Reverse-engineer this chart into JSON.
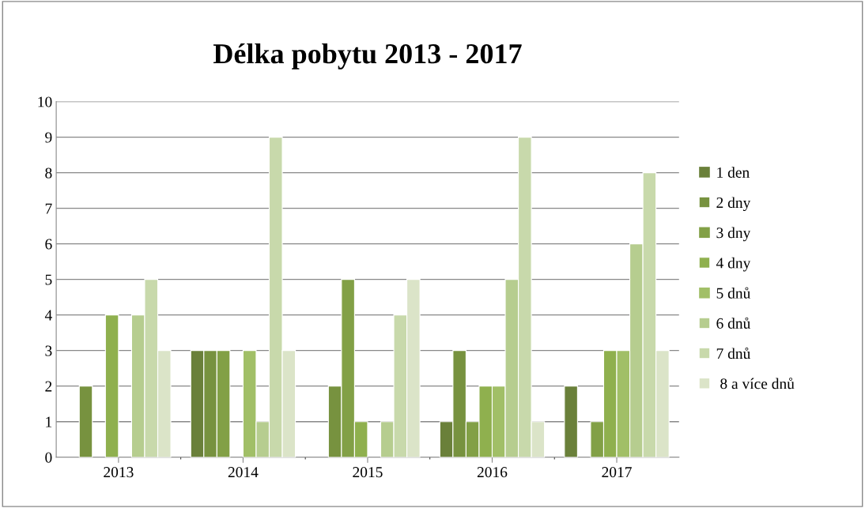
{
  "chart_data": {
    "type": "bar",
    "title": "Délka pobytu 2013 - 2017",
    "categories": [
      "2013",
      "2014",
      "2015",
      "2016",
      "2017"
    ],
    "series": [
      {
        "name": "1 den",
        "color": "#6a803a",
        "values": [
          0,
          3,
          0,
          1,
          2
        ]
      },
      {
        "name": "2 dny",
        "color": "#77923f",
        "values": [
          2,
          3,
          2,
          3,
          0
        ]
      },
      {
        "name": "3 dny",
        "color": "#82a046",
        "values": [
          0,
          3,
          5,
          1,
          1
        ]
      },
      {
        "name": "4 dny",
        "color": "#8fb04e",
        "values": [
          4,
          0,
          1,
          2,
          3
        ]
      },
      {
        "name": "5 dnů",
        "color": "#a1bf67",
        "values": [
          0,
          3,
          0,
          2,
          3
        ]
      },
      {
        "name": "6 dnů",
        "color": "#b6cd8f",
        "values": [
          4,
          1,
          1,
          5,
          6
        ]
      },
      {
        "name": "7 dnů",
        "color": "#c8d9ab",
        "values": [
          5,
          9,
          4,
          9,
          8
        ]
      },
      {
        "name": " 8 a více dnů",
        "color": "#dbe4c8",
        "values": [
          3,
          3,
          5,
          1,
          3
        ]
      }
    ],
    "ylim": [
      0,
      10
    ],
    "yticks": [
      0,
      1,
      2,
      3,
      4,
      5,
      6,
      7,
      8,
      9,
      10
    ],
    "grid": "y",
    "legend": "right"
  }
}
